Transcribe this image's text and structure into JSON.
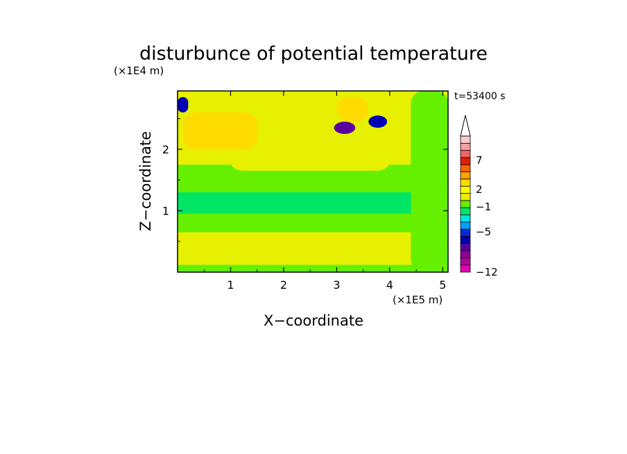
{
  "chart_data": {
    "type": "heatmap",
    "title": "disturbunce of potential temperature",
    "time_label": "t=53400 s",
    "xlabel": "X−coordinate",
    "ylabel": "Z−coordinate",
    "x_multiplier": "(×1E5 m)",
    "y_multiplier": "(×1E4 m)",
    "xlim": [
      0,
      5.1
    ],
    "ylim": [
      0,
      2.95
    ],
    "x_ticks": [
      1,
      2,
      3,
      4,
      5
    ],
    "y_ticks": [
      1,
      2
    ],
    "x_tick_labels": [
      "1",
      "2",
      "3",
      "4",
      "5"
    ],
    "y_tick_labels": [
      "1",
      "2"
    ],
    "colorbar": {
      "levels": [
        -12,
        -10,
        -8,
        -6,
        -5,
        -4,
        -3,
        -2,
        -1,
        0,
        1,
        2,
        3,
        5,
        6,
        7,
        8,
        9,
        10
      ],
      "labeled": [
        "7",
        "2",
        "−1",
        "−5",
        "−12"
      ],
      "colors": [
        "#e600b4",
        "#b4009b",
        "#8c0096",
        "#5a00a0",
        "#0000b4",
        "#0028dc",
        "#00a0ff",
        "#00e6e6",
        "#00e664",
        "#64f000",
        "#e6f000",
        "#ffff00",
        "#ffdc00",
        "#ffa000",
        "#ff6400",
        "#e61e00",
        "#f06464",
        "#f5a0a0",
        "#ffc8c8"
      ],
      "extend": "max"
    },
    "regions": [
      {
        "x": [
          0.0,
          5.1
        ],
        "z": [
          0.0,
          0.12
        ],
        "value": 0.5
      },
      {
        "x": [
          0.0,
          5.1
        ],
        "z": [
          0.12,
          0.65
        ],
        "value": 1.2
      },
      {
        "x": [
          0.0,
          5.1
        ],
        "z": [
          0.65,
          0.95
        ],
        "value": 0.4
      },
      {
        "x": [
          0.0,
          5.1
        ],
        "z": [
          0.95,
          1.3
        ],
        "value": -0.8
      },
      {
        "x": [
          0.0,
          5.1
        ],
        "z": [
          1.3,
          1.75
        ],
        "value": 0.3
      },
      {
        "x": [
          0.0,
          5.1
        ],
        "z": [
          1.75,
          2.95
        ],
        "value": 1.8
      },
      {
        "x": [
          1.0,
          4.0
        ],
        "z": [
          1.65,
          1.95
        ],
        "value": 1.5
      },
      {
        "x": [
          0.1,
          1.5
        ],
        "z": [
          2.0,
          2.6
        ],
        "value": 4.5
      },
      {
        "x": [
          3.0,
          3.6
        ],
        "z": [
          2.45,
          2.85
        ],
        "value": 4.0
      },
      {
        "x": [
          2.95,
          3.35
        ],
        "z": [
          2.25,
          2.45
        ],
        "value": -5.5
      },
      {
        "x": [
          3.6,
          3.95
        ],
        "z": [
          2.35,
          2.55
        ],
        "value": -5.0
      },
      {
        "x": [
          0.0,
          0.2
        ],
        "z": [
          2.6,
          2.85
        ],
        "value": -5.0
      },
      {
        "x": [
          4.4,
          5.1
        ],
        "z": [
          0.0,
          2.95
        ],
        "value": 0.5
      }
    ]
  }
}
